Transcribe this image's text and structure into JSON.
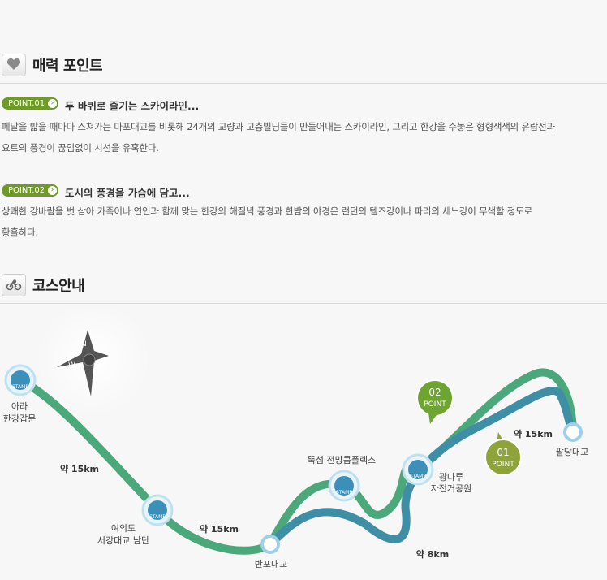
{
  "attractions": {
    "title": "매력 포인트",
    "icon": "heart-icon",
    "points": [
      {
        "badge": "POINT.01",
        "title": "두 바퀴로 즐기는 스카이라인...",
        "desc_line1": "페달을 밟을 때마다 스쳐가는 마포대교를 비롯해 24개의 교량과 고층빌딩들이 만들어내는 스카이라인, 그리고 한강을 수놓은 형형색색의 유람선과",
        "desc_line2": "요트의 풍경이 끊임없이 시선을 유혹한다."
      },
      {
        "badge": "POINT.02",
        "title": "도시의 풍경을 가슴에 담고...",
        "desc_line1": "상쾌한 강바람을 벗 삼아 가족이나 연인과 함께 맞는 한강의 해질녘 풍경과 한밤의 야경은 런던의 템즈강이나 파리의 세느강이 무색할 정도로",
        "desc_line2": "황홀하다."
      }
    ]
  },
  "course": {
    "title": "코스안내",
    "icon": "bicycle-icon",
    "map": {
      "compass": {
        "n": "N",
        "e": "E",
        "s": "S",
        "w": "W"
      },
      "stamp_text": "STAMP",
      "stops": {
        "ara_line1": "아라",
        "ara_line2": "한강갑문",
        "yeouido_line1": "여의도",
        "yeouido_line2": "서강대교 남단",
        "banpo": "반포대교",
        "ttukseom": "뚝섬 전망콤플렉스",
        "gwangnaru_line1": "광나루",
        "gwangnaru_line2": "자전거공원",
        "paldang": "팔당대교"
      },
      "distances": {
        "d1": "약 15km",
        "d2": "약 15km",
        "d3": "약 8km",
        "d4": "약 15km"
      },
      "points": {
        "p02_num": "02",
        "p02_label": "POINT",
        "p01_num": "01",
        "p01_label": "POINT"
      },
      "colors": {
        "route_green": "#4aa87a",
        "route_blue": "#3e8fa6",
        "point_green": "#6ea431",
        "point_olive": "#8ea33a"
      }
    }
  }
}
